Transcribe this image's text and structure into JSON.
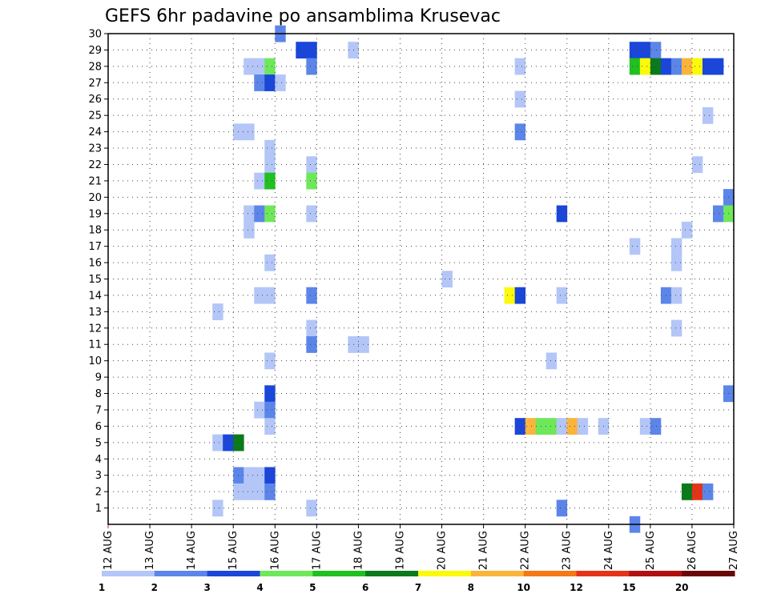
{
  "chart_data": {
    "type": "heatmap",
    "title": "GEFS 6hr padavine po ansamblima Krusevac",
    "y_members": [
      1,
      2,
      3,
      4,
      5,
      6,
      7,
      8,
      9,
      10,
      11,
      12,
      13,
      14,
      15,
      16,
      17,
      18,
      19,
      20,
      21,
      22,
      23,
      24,
      25,
      26,
      27,
      28,
      29,
      30
    ],
    "y_tick_labels": [
      "1",
      "2",
      "3",
      "4",
      "5",
      "6",
      "7",
      "8",
      "9",
      "10",
      "11",
      "12",
      "13",
      "14",
      "15",
      "16",
      "17",
      "18",
      "19",
      "20",
      "21",
      "22",
      "23",
      "24",
      "25",
      "26",
      "27",
      "28",
      "29",
      "30"
    ],
    "x_tick_labels": [
      "12 AUG",
      "13 AUG",
      "14 AUG",
      "15 AUG",
      "16 AUG",
      "17 AUG",
      "18 AUG",
      "19 AUG",
      "20 AUG",
      "21 AUG",
      "22 AUG",
      "23 AUG",
      "24 AUG",
      "25 AUG",
      "26 AUG",
      "27 AUG"
    ],
    "x_range_days": [
      0,
      15
    ],
    "steps_per_day": 4,
    "grid": "dotted",
    "colorbar": {
      "tick_labels": [
        "1",
        "2",
        "3",
        "4",
        "5",
        "6",
        "7",
        "8",
        "10",
        "12",
        "15",
        "20"
      ],
      "colors": [
        "#b3c6f7",
        "#5c85ea",
        "#1a46d9",
        "#6ee85a",
        "#1fc01f",
        "#0a7a1a",
        "#fafa0a",
        "#fbb43a",
        "#f57818",
        "#e3341a",
        "#b01010",
        "#6a0808"
      ]
    },
    "cells": [
      {
        "m": 30,
        "s": 16,
        "c": 1
      },
      {
        "m": 29,
        "s": 18,
        "c": 2
      },
      {
        "m": 29,
        "s": 19,
        "c": 2
      },
      {
        "m": 29,
        "s": 23,
        "c": 0
      },
      {
        "m": 29,
        "s": 50,
        "c": 2
      },
      {
        "m": 29,
        "s": 51,
        "c": 2
      },
      {
        "m": 29,
        "s": 52,
        "c": 1
      },
      {
        "m": 28,
        "s": 13,
        "c": 0
      },
      {
        "m": 28,
        "s": 14,
        "c": 0
      },
      {
        "m": 28,
        "s": 15,
        "c": 3
      },
      {
        "m": 28,
        "s": 19,
        "c": 1
      },
      {
        "m": 28,
        "s": 39,
        "c": 0
      },
      {
        "m": 28,
        "s": 50,
        "c": 4
      },
      {
        "m": 28,
        "s": 51,
        "c": 6
      },
      {
        "m": 28,
        "s": 52,
        "c": 5
      },
      {
        "m": 28,
        "s": 53,
        "c": 2
      },
      {
        "m": 28,
        "s": 54,
        "c": 1
      },
      {
        "m": 28,
        "s": 55,
        "c": 7
      },
      {
        "m": 28,
        "s": 56,
        "c": 6
      },
      {
        "m": 28,
        "s": 57,
        "c": 2
      },
      {
        "m": 28,
        "s": 58,
        "c": 2
      },
      {
        "m": 27,
        "s": 14,
        "c": 1
      },
      {
        "m": 27,
        "s": 15,
        "c": 2
      },
      {
        "m": 27,
        "s": 16,
        "c": 0
      },
      {
        "m": 26,
        "s": 39,
        "c": 0
      },
      {
        "m": 25,
        "s": 57,
        "c": 0
      },
      {
        "m": 24,
        "s": 12,
        "c": 0
      },
      {
        "m": 24,
        "s": 13,
        "c": 0
      },
      {
        "m": 24,
        "s": 39,
        "c": 1
      },
      {
        "m": 23,
        "s": 15,
        "c": 0
      },
      {
        "m": 22,
        "s": 15,
        "c": 0
      },
      {
        "m": 22,
        "s": 19,
        "c": 0
      },
      {
        "m": 22,
        "s": 56,
        "c": 0
      },
      {
        "m": 21,
        "s": 14,
        "c": 0
      },
      {
        "m": 21,
        "s": 15,
        "c": 4
      },
      {
        "m": 21,
        "s": 19,
        "c": 3
      },
      {
        "m": 20,
        "s": 59,
        "c": 1
      },
      {
        "m": 19,
        "s": 13,
        "c": 0
      },
      {
        "m": 19,
        "s": 14,
        "c": 1
      },
      {
        "m": 19,
        "s": 15,
        "c": 3
      },
      {
        "m": 19,
        "s": 19,
        "c": 0
      },
      {
        "m": 19,
        "s": 43,
        "c": 2
      },
      {
        "m": 19,
        "s": 58,
        "c": 1
      },
      {
        "m": 19,
        "s": 59,
        "c": 3
      },
      {
        "m": 18,
        "s": 13,
        "c": 0
      },
      {
        "m": 18,
        "s": 55,
        "c": 0
      },
      {
        "m": 17,
        "s": 50,
        "c": 0
      },
      {
        "m": 17,
        "s": 54,
        "c": 0
      },
      {
        "m": 16,
        "s": 15,
        "c": 0
      },
      {
        "m": 16,
        "s": 54,
        "c": 0
      },
      {
        "m": 15,
        "s": 32,
        "c": 0
      },
      {
        "m": 14,
        "s": 14,
        "c": 0
      },
      {
        "m": 14,
        "s": 15,
        "c": 0
      },
      {
        "m": 14,
        "s": 19,
        "c": 1
      },
      {
        "m": 14,
        "s": 38,
        "c": 6
      },
      {
        "m": 14,
        "s": 39,
        "c": 2
      },
      {
        "m": 14,
        "s": 43,
        "c": 0
      },
      {
        "m": 14,
        "s": 53,
        "c": 1
      },
      {
        "m": 14,
        "s": 54,
        "c": 0
      },
      {
        "m": 13,
        "s": 10,
        "c": 0
      },
      {
        "m": 12,
        "s": 19,
        "c": 0
      },
      {
        "m": 12,
        "s": 54,
        "c": 0
      },
      {
        "m": 11,
        "s": 19,
        "c": 1
      },
      {
        "m": 11,
        "s": 23,
        "c": 0
      },
      {
        "m": 11,
        "s": 24,
        "c": 0
      },
      {
        "m": 10,
        "s": 15,
        "c": 0
      },
      {
        "m": 10,
        "s": 42,
        "c": 0
      },
      {
        "m": 8,
        "s": 15,
        "c": 2
      },
      {
        "m": 8,
        "s": 59,
        "c": 1
      },
      {
        "m": 7,
        "s": 14,
        "c": 0
      },
      {
        "m": 7,
        "s": 15,
        "c": 1
      },
      {
        "m": 6,
        "s": 15,
        "c": 0
      },
      {
        "m": 6,
        "s": 39,
        "c": 2
      },
      {
        "m": 6,
        "s": 40,
        "c": 7
      },
      {
        "m": 6,
        "s": 41,
        "c": 3
      },
      {
        "m": 6,
        "s": 42,
        "c": 3
      },
      {
        "m": 6,
        "s": 43,
        "c": 0
      },
      {
        "m": 6,
        "s": 44,
        "c": 7
      },
      {
        "m": 6,
        "s": 45,
        "c": 0
      },
      {
        "m": 6,
        "s": 47,
        "c": 0
      },
      {
        "m": 6,
        "s": 51,
        "c": 0
      },
      {
        "m": 6,
        "s": 52,
        "c": 1
      },
      {
        "m": 5,
        "s": 10,
        "c": 0
      },
      {
        "m": 5,
        "s": 11,
        "c": 2
      },
      {
        "m": 5,
        "s": 12,
        "c": 5
      },
      {
        "m": 3,
        "s": 12,
        "c": 1
      },
      {
        "m": 3,
        "s": 13,
        "c": 0
      },
      {
        "m": 3,
        "s": 14,
        "c": 0
      },
      {
        "m": 3,
        "s": 15,
        "c": 2
      },
      {
        "m": 2,
        "s": 12,
        "c": 0
      },
      {
        "m": 2,
        "s": 13,
        "c": 0
      },
      {
        "m": 2,
        "s": 14,
        "c": 0
      },
      {
        "m": 2,
        "s": 15,
        "c": 1
      },
      {
        "m": 2,
        "s": 55,
        "c": 5
      },
      {
        "m": 2,
        "s": 56,
        "c": 9
      },
      {
        "m": 2,
        "s": 57,
        "c": 1
      },
      {
        "m": 1,
        "s": 10,
        "c": 0
      },
      {
        "m": 1,
        "s": 19,
        "c": 0
      },
      {
        "m": 1,
        "s": 43,
        "c": 1
      },
      {
        "m": 0,
        "s": 50,
        "c": 1
      }
    ]
  }
}
